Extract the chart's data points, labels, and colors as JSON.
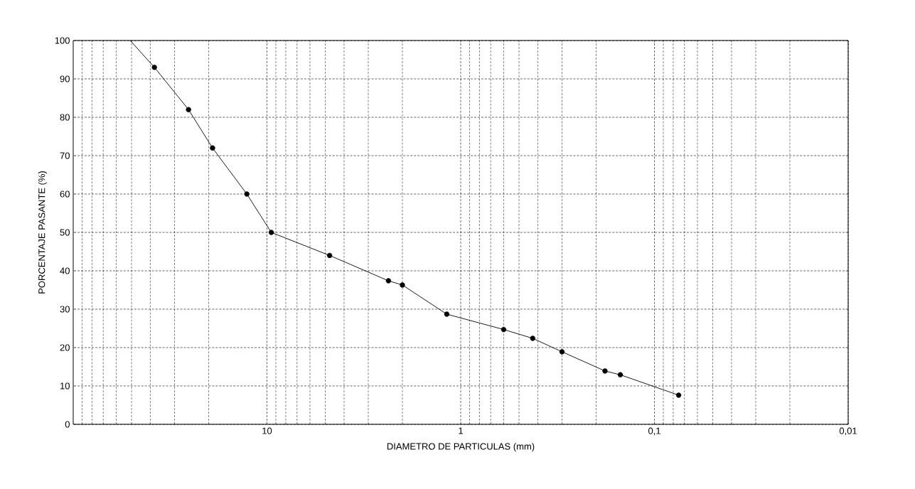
{
  "chart_data": {
    "type": "line",
    "xlabel": "DIAMETRO DE PARTICULAS (mm)",
    "ylabel": "PORCENTAJE  PASANTE (%)",
    "xlim": [
      100,
      0.01
    ],
    "ylim": [
      0,
      100
    ],
    "log": "x",
    "grid": true,
    "xticks": [
      10,
      1,
      {
        "value": 0.1,
        "label": "0,1"
      },
      {
        "value": 0.01,
        "label": "0,01"
      }
    ],
    "yticks": [
      0,
      10,
      20,
      30,
      40,
      50,
      60,
      70,
      80,
      90,
      100
    ],
    "series": [
      {
        "marker": "none",
        "line_style": "solid",
        "color": "#000000",
        "x": [
          50.8,
          38.1,
          25.4,
          19.1,
          12.7,
          9.5,
          4.75,
          2.36,
          2.0,
          1.18,
          0.6,
          0.425,
          0.3,
          0.18,
          0.15,
          0.075
        ],
        "values": [
          100,
          93,
          82,
          72,
          60,
          50,
          44,
          37.4,
          36.3,
          28.7,
          24.7,
          22.4,
          18.9,
          13.9,
          12.9,
          7.6
        ]
      },
      {
        "type": "scatter",
        "marker": "circle",
        "color": "#000000",
        "x": [
          38.1,
          25.4,
          19.1,
          12.7,
          9.5,
          4.75,
          2.36,
          2.0,
          1.18,
          0.6,
          0.425,
          0.3,
          0.18,
          0.15,
          0.075
        ],
        "values": [
          93,
          82,
          72,
          60,
          50,
          44,
          37.4,
          36.3,
          28.7,
          24.7,
          22.4,
          18.9,
          13.9,
          12.9,
          7.6
        ]
      }
    ]
  }
}
